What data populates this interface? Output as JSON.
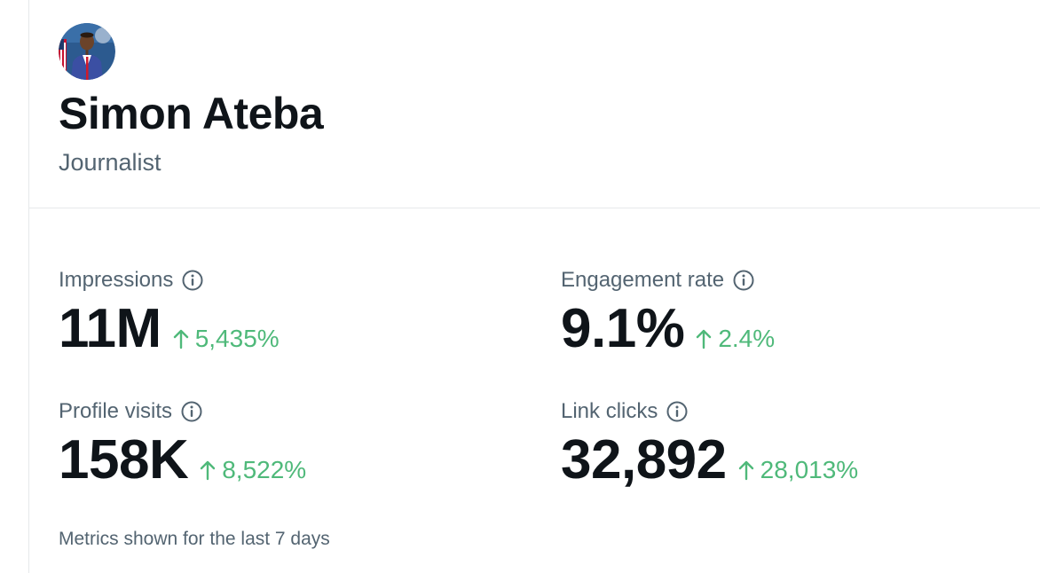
{
  "profile": {
    "name": "Simon Ateba",
    "bio": "Journalist"
  },
  "metrics": [
    {
      "label": "Impressions",
      "value": "11M",
      "change": "5,435%",
      "direction": "up"
    },
    {
      "label": "Engagement rate",
      "value": "9.1%",
      "change": "2.4%",
      "direction": "up"
    },
    {
      "label": "Profile visits",
      "value": "158K",
      "change": "8,522%",
      "direction": "up"
    },
    {
      "label": "Link clicks",
      "value": "32,892",
      "change": "28,013%",
      "direction": "up"
    }
  ],
  "footnote": "Metrics shown for the last 7 days",
  "icons": {
    "info": "info-circle-icon",
    "trend": "arrow-up-icon"
  },
  "colors": {
    "text_primary": "#0f1419",
    "text_secondary": "#536471",
    "positive_change": "#4fb97a",
    "divider": "#e6e9eb"
  }
}
